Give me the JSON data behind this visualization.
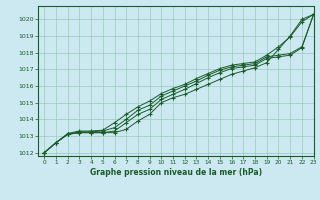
{
  "title": "Graphe pression niveau de la mer (hPa)",
  "xlim": [
    -0.5,
    23
  ],
  "ylim": [
    1011.8,
    1020.8
  ],
  "yticks": [
    1012,
    1013,
    1014,
    1015,
    1016,
    1017,
    1018,
    1019,
    1020
  ],
  "xticks": [
    0,
    1,
    2,
    3,
    4,
    5,
    6,
    7,
    8,
    9,
    10,
    11,
    12,
    13,
    14,
    15,
    16,
    17,
    18,
    19,
    20,
    21,
    22,
    23
  ],
  "bg_color": "#cce8f0",
  "grid_color": "#99ccbb",
  "line_color": "#1a5c2a",
  "series": [
    [
      1012.0,
      1012.6,
      1013.1,
      1013.2,
      1013.2,
      1013.2,
      1013.2,
      1013.4,
      1013.9,
      1014.3,
      1015.0,
      1015.3,
      1015.5,
      1015.8,
      1016.1,
      1016.4,
      1016.7,
      1016.9,
      1017.1,
      1017.4,
      1018.2,
      1019.0,
      1020.0,
      1020.3
    ],
    [
      1012.0,
      1012.6,
      1013.1,
      1013.2,
      1013.2,
      1013.2,
      1013.3,
      1013.8,
      1014.3,
      1014.6,
      1015.2,
      1015.5,
      1015.8,
      1016.15,
      1016.5,
      1016.8,
      1017.05,
      1017.15,
      1017.25,
      1017.65,
      1017.75,
      1017.85,
      1018.3,
      1020.3
    ],
    [
      1012.0,
      1012.6,
      1013.1,
      1013.25,
      1013.25,
      1013.3,
      1013.5,
      1014.0,
      1014.55,
      1014.85,
      1015.4,
      1015.7,
      1016.0,
      1016.3,
      1016.65,
      1016.95,
      1017.15,
      1017.25,
      1017.35,
      1017.75,
      1017.85,
      1017.95,
      1018.35,
      1020.3
    ],
    [
      1012.0,
      1012.6,
      1013.15,
      1013.3,
      1013.3,
      1013.35,
      1013.8,
      1014.3,
      1014.75,
      1015.1,
      1015.55,
      1015.85,
      1016.1,
      1016.45,
      1016.75,
      1017.05,
      1017.25,
      1017.35,
      1017.45,
      1017.85,
      1018.35,
      1018.95,
      1019.85,
      1020.3
    ]
  ]
}
